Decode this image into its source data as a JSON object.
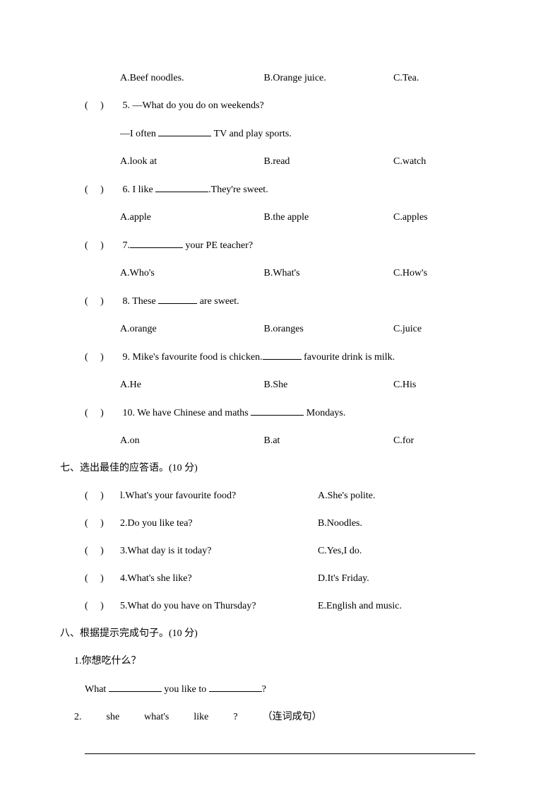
{
  "q4_options": {
    "a": "A.Beef noodles.",
    "b": "B.Orange juice.",
    "c": "C.Tea."
  },
  "q5": {
    "num": "5.",
    "line1": "—What do you do on weekends?",
    "line2a": "—I often ",
    "line2b": " TV and play sports.",
    "a": "A.look at",
    "b": "B.read",
    "c": "C.watch"
  },
  "q6": {
    "num": "6.",
    "before": "I like ",
    "after": ".They're sweet.",
    "a": "A.apple",
    "b": "B.the apple",
    "c": "C.apples"
  },
  "q7": {
    "num": "7.",
    "after": " your PE teacher?",
    "a": "A.Who's",
    "b": "B.What's",
    "c": "C.How's"
  },
  "q8": {
    "num": "8.",
    "before": "These ",
    "after": " are sweet.",
    "a": "A.orange",
    "b": "B.oranges",
    "c": "C.juice"
  },
  "q9": {
    "num": "9.",
    "before": "Mike's favourite food is chicken.",
    "after": " favourite drink is milk.",
    "a": "A.He",
    "b": "B.She",
    "c": "C.His"
  },
  "q10": {
    "num": "10.",
    "before": "We have Chinese and maths ",
    "after": " Mondays.",
    "a": "A.on",
    "b": "B.at",
    "c": "C.for"
  },
  "section7": "七、选出最佳的应答语。(10 分)",
  "match": [
    {
      "l": "l.What's your favourite food?",
      "r": "A.She's polite."
    },
    {
      "l": "2.Do you like tea?",
      "r": "B.Noodles."
    },
    {
      "l": "3.What day is it today?",
      "r": "C.Yes,I do."
    },
    {
      "l": "4.What's she like?",
      "r": "D.It's Friday."
    },
    {
      "l": "5.What do you have on Thursday?",
      "r": "E.English and music."
    }
  ],
  "section8": "八、根据提示完成句子。(10 分)",
  "s8_1_prompt": "1.你想吃什么？",
  "s8_1_a": "What ",
  "s8_1_b": " you like to ",
  "s8_1_c": "?",
  "s8_2_label": "2.",
  "s8_2_words": [
    "she",
    "what's",
    "like",
    "?"
  ],
  "s8_2_note": "（连词成句）",
  "paren_open": "(",
  "paren_close": ")"
}
